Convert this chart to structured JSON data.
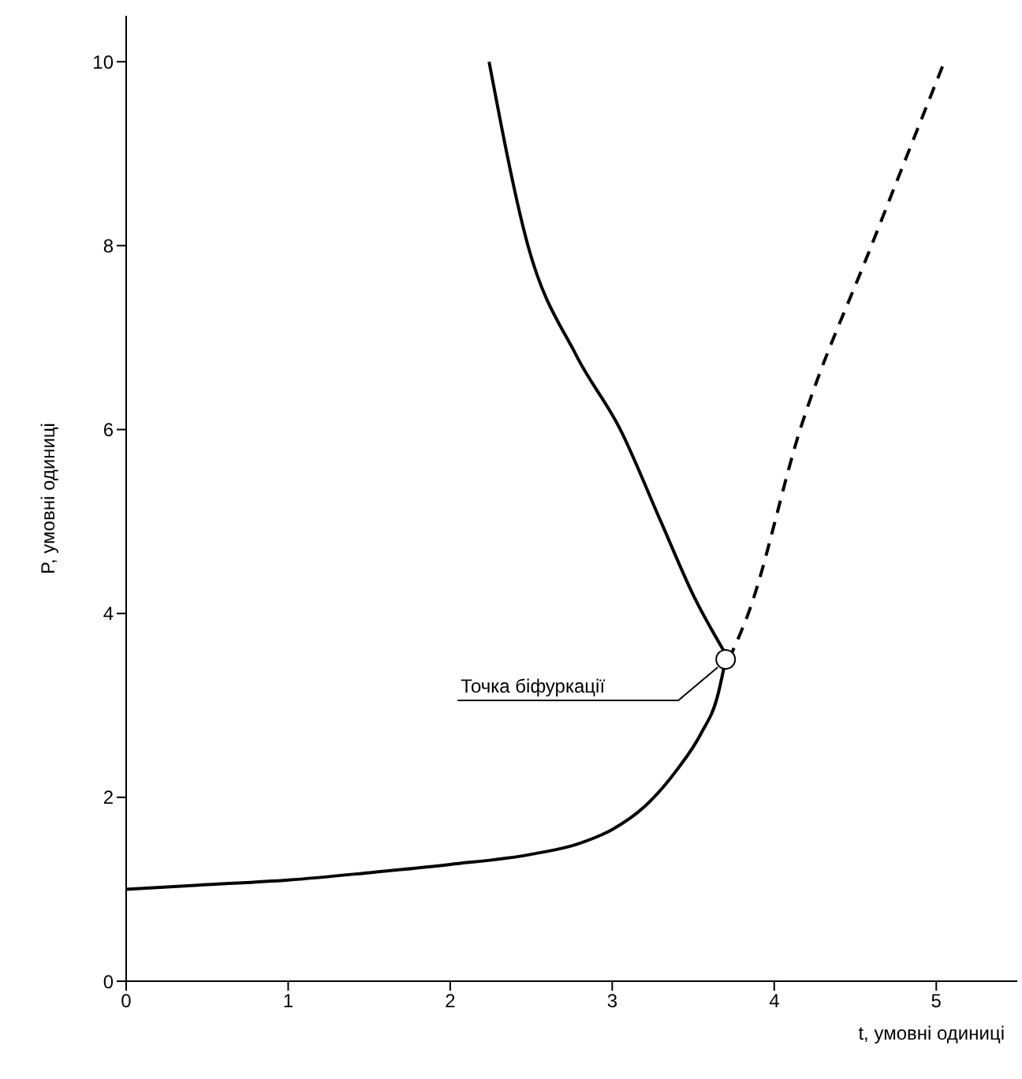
{
  "chart_data": {
    "type": "line",
    "xlabel": "t, умовні одиниці",
    "ylabel": "P, умовні одиниці",
    "xlim": [
      0,
      5.5
    ],
    "xticks": [
      0,
      1,
      2,
      3,
      4,
      5
    ],
    "ylim": [
      0,
      10.5
    ],
    "yticks": [
      0,
      2,
      4,
      6,
      8,
      10
    ],
    "marker": "none",
    "series": [
      {
        "color": "#000000",
        "line_style": "solid",
        "x": [
          0,
          0.5,
          1,
          1.5,
          2,
          2.5,
          2.8,
          3.0,
          3.2,
          3.4,
          3.55,
          3.65,
          3.7
        ],
        "values": [
          1,
          1.05,
          1.1,
          1.18,
          1.27,
          1.38,
          1.5,
          1.65,
          1.9,
          2.3,
          2.7,
          3.1,
          3.5
        ]
      },
      {
        "color": "#000000",
        "line_style": "solid",
        "x": [
          2.24,
          2.48,
          2.78,
          3.05,
          3.3,
          3.5,
          3.72
        ],
        "values": [
          10,
          8,
          6.8,
          6,
          5,
          4.2,
          3.5
        ]
      },
      {
        "color": "#000000",
        "line_style": "dashed",
        "x": [
          3.72,
          3.84,
          4.16,
          4.6,
          5.05
        ],
        "values": [
          3.5,
          4,
          6,
          8,
          10
        ]
      }
    ],
    "annotations": [
      {
        "text": "Точка біфуркації",
        "x": 3.7,
        "y": 3.5
      }
    ]
  }
}
